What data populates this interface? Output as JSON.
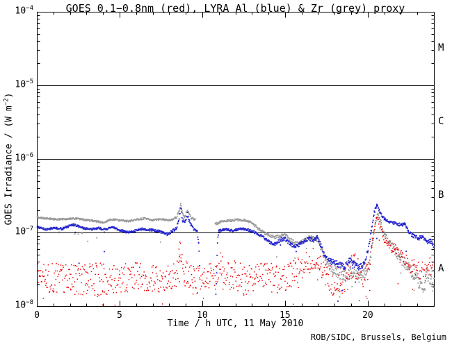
{
  "chart_data": {
    "type": "scatter",
    "title": "GOES 0.1−0.8nm (red), LYRA Al (blue) & Zr (grey) proxy",
    "xlabel": "Time / h UTC, 11 May 2010",
    "ylabel_parts": {
      "pre": "GOES Irradiance / (W m",
      "sup": "−2",
      "post": ")"
    },
    "credit": "ROB/SIDC, Brussels, Belgium",
    "xlim": [
      0,
      24
    ],
    "ylim": [
      1e-08,
      0.0001
    ],
    "yscale": "log",
    "x_minor_step": 1,
    "x_major_step": 5,
    "xticks": [
      {
        "label": "0",
        "value": 0
      },
      {
        "label": "5",
        "value": 5
      },
      {
        "label": "10",
        "value": 10
      },
      {
        "label": "15",
        "value": 15
      },
      {
        "label": "20",
        "value": 20
      }
    ],
    "yticks": [
      {
        "base": "10",
        "exp": "−4",
        "value": 0.0001
      },
      {
        "base": "10",
        "exp": "−5",
        "value": 1e-05
      },
      {
        "base": "10",
        "exp": "−6",
        "value": 1e-06
      },
      {
        "base": "10",
        "exp": "−7",
        "value": 1e-07
      },
      {
        "base": "10",
        "exp": "−8",
        "value": 1e-08
      }
    ],
    "hlines": [
      1e-05,
      1e-06,
      1e-07
    ],
    "flare_class_labels": [
      {
        "label": "M",
        "value": 3.16e-05
      },
      {
        "label": "C",
        "value": 3.16e-06
      },
      {
        "label": "B",
        "value": 3.16e-07
      },
      {
        "label": "A",
        "value": 3.16e-08
      }
    ],
    "axis_color": "#000000",
    "series": [
      {
        "name": "LYRA Zr proxy",
        "color": "#999999",
        "dot": 1.8,
        "step": 0.025,
        "outlier": {
          "prob": 0.02,
          "depth": 0.3
        },
        "segments": [
          [
            [
              0,
              1.6e-07,
              0.012
            ],
            [
              0.6,
              1.55e-07,
              0.012
            ],
            [
              1.2,
              1.5e-07,
              0.012
            ],
            [
              1.8,
              1.52e-07,
              0.012
            ],
            [
              2.4,
              1.55e-07,
              0.012
            ],
            [
              3.0,
              1.47e-07,
              0.012
            ],
            [
              3.6,
              1.42e-07,
              0.012
            ],
            [
              4.0,
              1.36e-07,
              0.012
            ],
            [
              4.5,
              1.5e-07,
              0.012
            ],
            [
              5.0,
              1.47e-07,
              0.012
            ],
            [
              5.5,
              1.42e-07,
              0.012
            ],
            [
              6.0,
              1.5e-07,
              0.012
            ],
            [
              6.5,
              1.55e-07,
              0.012
            ],
            [
              7.0,
              1.47e-07,
              0.012
            ],
            [
              7.5,
              1.52e-07,
              0.012
            ],
            [
              8.0,
              1.46e-07,
              0.012
            ],
            [
              8.45,
              1.6e-07,
              0.015
            ],
            [
              8.6,
              2e-07,
              0.02
            ],
            [
              8.7,
              2.45e-07,
              0.02
            ],
            [
              8.8,
              1.8e-07,
              0.02
            ],
            [
              8.95,
              1.62e-07,
              0.02
            ],
            [
              9.1,
              2.05e-07,
              0.02
            ],
            [
              9.3,
              1.6e-07,
              0.02
            ],
            [
              9.6,
              1.5e-07,
              0.02
            ]
          ],
          [
            [
              10.78,
              1.3e-07,
              0.015
            ],
            [
              11.2,
              1.42e-07,
              0.015
            ],
            [
              11.7,
              1.46e-07,
              0.015
            ],
            [
              12.2,
              1.48e-07,
              0.015
            ],
            [
              12.7,
              1.46e-07,
              0.015
            ],
            [
              13.0,
              1.35e-07,
              0.015
            ],
            [
              13.35,
              1.15e-07,
              0.02
            ],
            [
              13.7,
              1e-07,
              0.02
            ],
            [
              14.05,
              9.2e-08,
              0.02
            ],
            [
              14.35,
              8.6e-08,
              0.02
            ],
            [
              14.7,
              9e-08,
              0.02
            ],
            [
              15.0,
              9.4e-08,
              0.02
            ],
            [
              15.3,
              8e-08,
              0.025
            ],
            [
              15.6,
              7.2e-08,
              0.025
            ],
            [
              15.9,
              7.2e-08,
              0.025
            ],
            [
              16.2,
              8e-08,
              0.025
            ],
            [
              16.5,
              8.6e-08,
              0.025
            ],
            [
              16.8,
              8.2e-08,
              0.03
            ],
            [
              17.0,
              8e-08,
              0.03
            ],
            [
              17.2,
              6e-08,
              0.05
            ],
            [
              17.5,
              4e-08,
              0.06
            ],
            [
              17.8,
              3.3e-08,
              0.07
            ],
            [
              18.2,
              2.9e-08,
              0.08
            ],
            [
              18.6,
              2.6e-08,
              0.08
            ],
            [
              19.0,
              2.8e-08,
              0.08
            ],
            [
              19.4,
              2.5e-08,
              0.08
            ],
            [
              19.8,
              2.7e-08,
              0.08
            ],
            [
              20.1,
              3.5e-08,
              0.06
            ],
            [
              20.3,
              7.5e-08,
              0.05
            ],
            [
              20.5,
              1.5e-07,
              0.03
            ],
            [
              20.62,
              1.85e-07,
              0.03
            ],
            [
              20.8,
              1.35e-07,
              0.03
            ],
            [
              21.05,
              9.2e-08,
              0.04
            ],
            [
              21.35,
              7e-08,
              0.05
            ],
            [
              21.65,
              5.6e-08,
              0.06
            ],
            [
              21.95,
              4.6e-08,
              0.07
            ],
            [
              22.25,
              3.8e-08,
              0.08
            ],
            [
              22.55,
              3.2e-08,
              0.09
            ],
            [
              22.85,
              2.6e-08,
              0.09
            ],
            [
              23.1,
              2e-08,
              0.1
            ],
            [
              23.3,
              1.6e-08,
              0.1
            ],
            [
              23.55,
              2.6e-08,
              0.1
            ],
            [
              23.8,
              2.2e-08,
              0.1
            ],
            [
              24,
              1.9e-08,
              0.1
            ]
          ]
        ]
      },
      {
        "name": "GOES 0.1-0.8nm",
        "color": "#ee0000",
        "dot": 1.5,
        "step": 0.03,
        "outlier": {
          "prob": 0.04,
          "depth": 0.4
        },
        "segments": [
          [
            [
              0,
              2.5e-08,
              0.2
            ],
            [
              1,
              2.4e-08,
              0.2
            ],
            [
              2,
              2.4e-08,
              0.22
            ],
            [
              3,
              2.2e-08,
              0.24
            ],
            [
              4,
              2.3e-08,
              0.24
            ],
            [
              5,
              2.4e-08,
              0.2
            ],
            [
              6,
              2.5e-08,
              0.2
            ],
            [
              7,
              2.4e-08,
              0.2
            ],
            [
              8,
              2.3e-08,
              0.18
            ],
            [
              8.5,
              2.8e-08,
              0.18
            ],
            [
              8.65,
              6e-08,
              0.12
            ],
            [
              8.75,
              5e-08,
              0.12
            ],
            [
              8.9,
              2.8e-08,
              0.18
            ],
            [
              9.5,
              2.2e-08,
              0.2
            ],
            [
              10.1,
              2.1e-08,
              0.22
            ],
            [
              10.5,
              2.6e-08,
              0.2
            ],
            [
              10.8,
              2.2e-08,
              0.2
            ],
            [
              11.1,
              3.8e-08,
              0.16
            ],
            [
              11.35,
              2.6e-08,
              0.2
            ],
            [
              12,
              2.6e-08,
              0.2
            ],
            [
              12.6,
              2.2e-08,
              0.22
            ],
            [
              13.2,
              2.4e-08,
              0.2
            ],
            [
              13.7,
              2.8e-08,
              0.18
            ],
            [
              14.2,
              2.4e-08,
              0.2
            ],
            [
              14.7,
              2.3e-08,
              0.2
            ],
            [
              15.2,
              2.6e-08,
              0.18
            ],
            [
              15.7,
              3e-08,
              0.18
            ],
            [
              16.2,
              3.6e-08,
              0.16
            ],
            [
              16.7,
              4.2e-08,
              0.16
            ],
            [
              17.1,
              3.2e-08,
              0.18
            ],
            [
              17.5,
              2.4e-08,
              0.2
            ],
            [
              18.1,
              2.1e-08,
              0.2
            ],
            [
              18.7,
              2.4e-08,
              0.2
            ],
            [
              19.2,
              3.6e-08,
              0.18
            ],
            [
              19.6,
              2.6e-08,
              0.18
            ],
            [
              20.0,
              2.8e-08,
              0.15
            ],
            [
              20.25,
              6e-08,
              0.1
            ],
            [
              20.45,
              1.5e-07,
              0.05
            ],
            [
              20.55,
              1.55e-07,
              0.05
            ],
            [
              20.7,
              1.25e-07,
              0.05
            ],
            [
              21,
              8.5e-08,
              0.07
            ],
            [
              21.5,
              6e-08,
              0.09
            ],
            [
              22,
              4.8e-08,
              0.1
            ],
            [
              22.5,
              3.9e-08,
              0.12
            ],
            [
              23,
              3.1e-08,
              0.12
            ],
            [
              23.4,
              3e-08,
              0.12
            ],
            [
              23.7,
              3.6e-08,
              0.12
            ],
            [
              24,
              3.4e-08,
              0.12
            ]
          ]
        ]
      },
      {
        "name": "LYRA Al proxy",
        "color": "#2222cc",
        "dot": 1.8,
        "step": 0.025,
        "outlier": {
          "prob": 0.012,
          "depth": 0.5
        },
        "segments": [
          [
            [
              0,
              1.2e-07,
              0.015
            ],
            [
              0.5,
              1.1e-07,
              0.015
            ],
            [
              1,
              1.15e-07,
              0.015
            ],
            [
              1.5,
              1.12e-07,
              0.015
            ],
            [
              2.2,
              1.28e-07,
              0.015
            ],
            [
              2.8,
              1.15e-07,
              0.015
            ],
            [
              3.3,
              1.1e-07,
              0.015
            ],
            [
              3.7,
              1.15e-07,
              0.015
            ],
            [
              4.1,
              1.1e-07,
              0.015
            ],
            [
              4.5,
              1.18e-07,
              0.015
            ],
            [
              5.0,
              1.08e-07,
              0.015
            ],
            [
              5.5,
              1e-07,
              0.015
            ],
            [
              5.9,
              1.05e-07,
              0.015
            ],
            [
              6.4,
              1.12e-07,
              0.015
            ],
            [
              6.9,
              1.08e-07,
              0.015
            ],
            [
              7.4,
              1.04e-07,
              0.015
            ],
            [
              7.9,
              9.4e-08,
              0.02
            ],
            [
              8.15,
              1.02e-07,
              0.02
            ],
            [
              8.45,
              1.15e-07,
              0.02
            ],
            [
              8.6,
              1.6e-07,
              0.03
            ],
            [
              8.7,
              2.2e-07,
              0.03
            ],
            [
              8.8,
              1.5e-07,
              0.03
            ],
            [
              8.95,
              1.35e-07,
              0.03
            ],
            [
              9.1,
              1.75e-07,
              0.03
            ],
            [
              9.25,
              1.35e-07,
              0.03
            ],
            [
              9.45,
              1.12e-07,
              0.02
            ],
            [
              9.7,
              1.05e-07,
              0.02
            ],
            [
              9.78,
              7e-08,
              0.05
            ],
            [
              9.85,
              2.5e-08,
              0.1
            ]
          ],
          [
            [
              10.82,
              1.4e-08,
              0.05
            ],
            [
              10.92,
              7e-08,
              0.05
            ],
            [
              11.0,
              1.05e-07,
              0.02
            ],
            [
              11.4,
              1.1e-07,
              0.015
            ],
            [
              11.9,
              1.06e-07,
              0.015
            ],
            [
              12.3,
              1.12e-07,
              0.015
            ],
            [
              12.7,
              1.1e-07,
              0.015
            ],
            [
              13.05,
              1.04e-07,
              0.02
            ],
            [
              13.4,
              9.4e-08,
              0.02
            ],
            [
              13.75,
              8.4e-08,
              0.02
            ],
            [
              14.1,
              7.4e-08,
              0.025
            ],
            [
              14.4,
              7e-08,
              0.025
            ],
            [
              14.75,
              8e-08,
              0.025
            ],
            [
              15.0,
              8.2e-08,
              0.025
            ],
            [
              15.3,
              7e-08,
              0.025
            ],
            [
              15.6,
              6.5e-08,
              0.025
            ],
            [
              15.9,
              6.9e-08,
              0.025
            ],
            [
              16.2,
              7.7e-08,
              0.025
            ],
            [
              16.45,
              8.3e-08,
              0.025
            ],
            [
              16.7,
              7.7e-08,
              0.025
            ],
            [
              16.95,
              8.6e-08,
              0.03
            ],
            [
              17.15,
              6.8e-08,
              0.03
            ],
            [
              17.45,
              4.4e-08,
              0.04
            ],
            [
              17.8,
              4e-08,
              0.04
            ],
            [
              18.2,
              3.7e-08,
              0.04
            ],
            [
              18.6,
              3.4e-08,
              0.04
            ],
            [
              18.9,
              4.2e-08,
              0.04
            ],
            [
              19.15,
              3.8e-08,
              0.04
            ],
            [
              19.45,
              3.3e-08,
              0.04
            ],
            [
              19.75,
              3.7e-08,
              0.04
            ],
            [
              20.0,
              5.5e-08,
              0.03
            ],
            [
              20.2,
              1e-07,
              0.03
            ],
            [
              20.4,
              1.9e-07,
              0.02
            ],
            [
              20.55,
              2.4e-07,
              0.02
            ],
            [
              20.75,
              1.85e-07,
              0.02
            ],
            [
              21.0,
              1.55e-07,
              0.02
            ],
            [
              21.3,
              1.4e-07,
              0.02
            ],
            [
              21.7,
              1.32e-07,
              0.02
            ],
            [
              22.0,
              1.27e-07,
              0.02
            ],
            [
              22.25,
              1.3e-07,
              0.02
            ],
            [
              22.45,
              1.02e-07,
              0.025
            ],
            [
              22.75,
              9e-08,
              0.025
            ],
            [
              23.05,
              8.3e-08,
              0.03
            ],
            [
              23.3,
              8.8e-08,
              0.03
            ],
            [
              23.55,
              7.4e-08,
              0.03
            ],
            [
              23.8,
              7.6e-08,
              0.03
            ],
            [
              24,
              6.4e-08,
              0.03
            ]
          ]
        ]
      }
    ]
  }
}
